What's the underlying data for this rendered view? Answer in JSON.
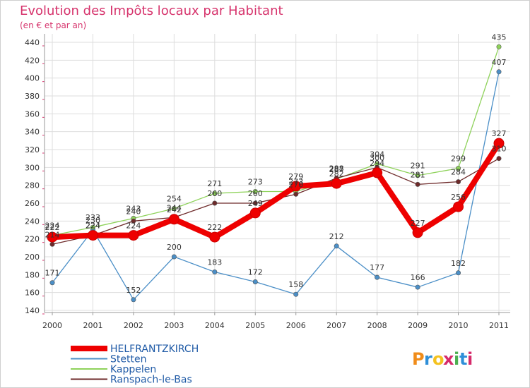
{
  "chart_data": {
    "type": "line",
    "title": "Evolution des Impôts locaux par Habitant",
    "subtitle": "(en € et par an)",
    "xlabel": "",
    "ylabel": "",
    "ylim": [
      140,
      440
    ],
    "yticks": [
      140,
      160,
      180,
      200,
      220,
      240,
      260,
      280,
      300,
      320,
      340,
      360,
      380,
      400,
      420,
      440
    ],
    "x": [
      "2000",
      "2001",
      "2002",
      "2003",
      "2004",
      "2005",
      "2006",
      "2007",
      "2008",
      "2009",
      "2010",
      "2011"
    ],
    "series": [
      {
        "name": "Stetten",
        "color": "#4b8fc7",
        "values": [
          171,
          230,
          152,
          200,
          183,
          172,
          158,
          212,
          177,
          166,
          182,
          407
        ]
      },
      {
        "name": "Kappelen",
        "color": "#8ed25a",
        "values": [
          224,
          233,
          243,
          254,
          271,
          273,
          273,
          287,
          304,
          291,
          299,
          435
        ]
      },
      {
        "name": "Ranspach-le-Bas",
        "color": "#6e2a2a",
        "values": [
          214,
          224,
          240,
          244,
          260,
          260,
          270,
          288,
          300,
          281,
          284,
          310
        ]
      },
      {
        "name": "HELFRANTZKIRCH",
        "color": "#ee0000",
        "values": [
          222,
          224,
          224,
          242,
          222,
          249,
          279,
          282,
          294,
          227,
          256,
          327
        ]
      }
    ],
    "data_labels": [
      {
        "series": "Stetten",
        "values": [
          171,
          230,
          152,
          200,
          183,
          172,
          158,
          212,
          177,
          166,
          182,
          407
        ]
      },
      {
        "series": "Kappelen",
        "values": [
          224,
          233,
          243,
          254,
          271,
          273,
          273,
          287,
          304,
          291,
          299,
          435
        ]
      },
      {
        "series": "Ranspach-le-Bas",
        "values": [
          214,
          224,
          240,
          244,
          260,
          260,
          270,
          288,
          300,
          281,
          284,
          310
        ]
      },
      {
        "series": "HELFRANTZKIRCH",
        "values": [
          222,
          224,
          224,
          242,
          222,
          249,
          279,
          282,
          294,
          227,
          256,
          327
        ]
      }
    ],
    "legend": {
      "placement": "bottom-left",
      "entries": [
        "HELFRANTZKIRCH",
        "Stetten",
        "Kappelen",
        "Ranspach-le-Bas"
      ]
    },
    "grid": true
  },
  "logo": {
    "text": "Proxiti",
    "letter_colors": [
      "#f08c1a",
      "#2f8fd8",
      "#f4c21f",
      "#d62a6b",
      "#4caf50",
      "#2f8fd8",
      "#d62a6b"
    ]
  }
}
